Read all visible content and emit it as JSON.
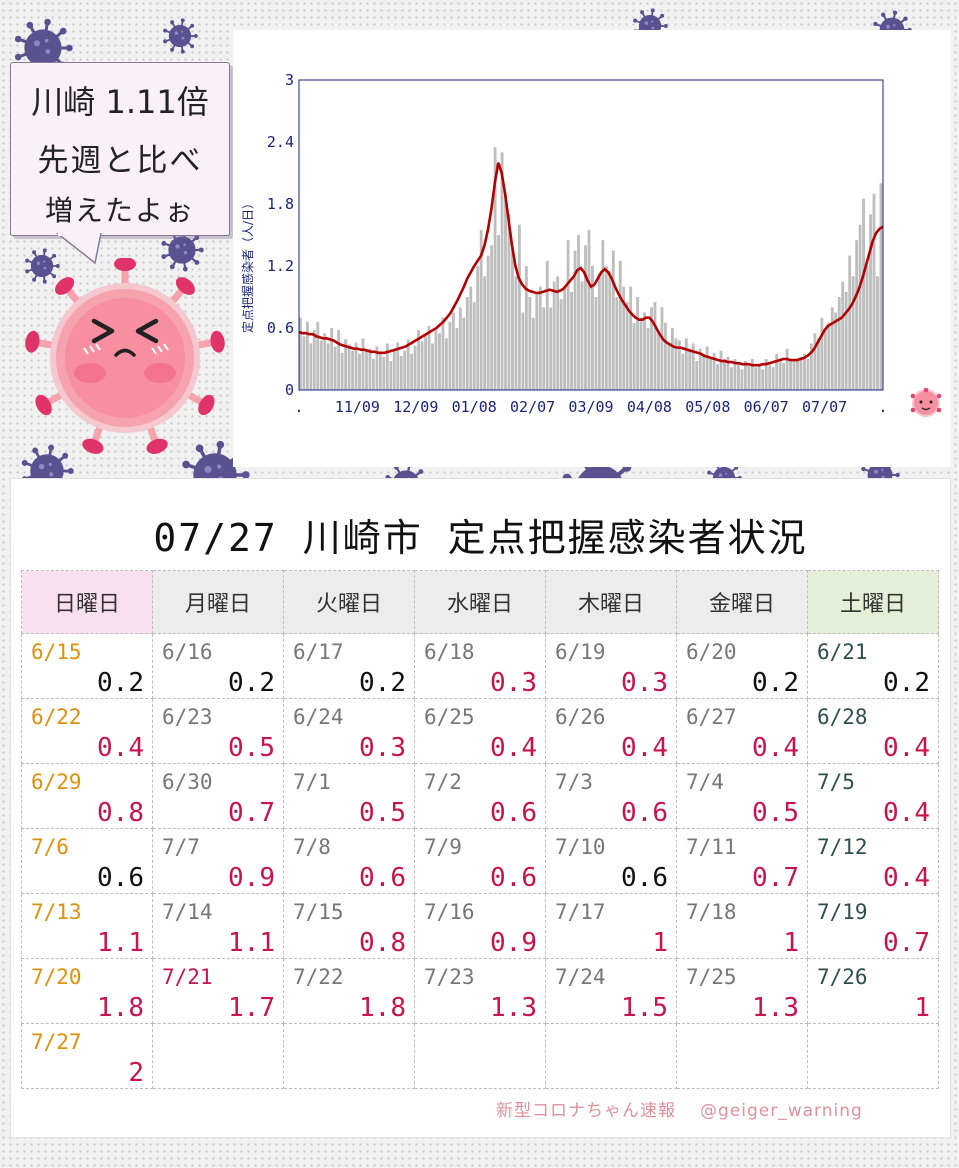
{
  "bubble": {
    "line1": "川崎 1.11倍",
    "line2": "先週と比べ",
    "line3": "増えたよぉ"
  },
  "chart_data": {
    "type": "bar",
    "title": "",
    "ylabel": "定点把握感染者（人/日）",
    "ylim": [
      0,
      3
    ],
    "yticks": [
      "0",
      "0.6",
      "1.2",
      "1.8",
      "2.4",
      "3"
    ],
    "xtick_labels": [
      ".",
      "11/09",
      "12/09",
      "01/08",
      "02/07",
      "03/09",
      "04/08",
      "05/08",
      "06/07",
      "07/07",
      "."
    ],
    "grid": false,
    "series": [
      {
        "type": "bar",
        "color": "#bebebe",
        "values": [
          0.7,
          0.52,
          0.66,
          0.45,
          0.58,
          0.66,
          0.48,
          0.55,
          0.45,
          0.6,
          0.42,
          0.58,
          0.36,
          0.49,
          0.44,
          0.38,
          0.46,
          0.35,
          0.5,
          0.38,
          0.4,
          0.3,
          0.42,
          0.36,
          0.32,
          0.45,
          0.28,
          0.4,
          0.46,
          0.33,
          0.38,
          0.49,
          0.35,
          0.43,
          0.58,
          0.47,
          0.52,
          0.62,
          0.45,
          0.6,
          0.55,
          0.7,
          0.5,
          0.66,
          0.75,
          0.6,
          0.8,
          0.7,
          0.9,
          1.0,
          0.85,
          1.2,
          1.55,
          1.1,
          1.3,
          1.4,
          2.35,
          1.5,
          2.3,
          1.9,
          1.7,
          1.4,
          1.1,
          1.6,
          0.75,
          1.2,
          0.9,
          0.7,
          0.95,
          1.0,
          0.8,
          1.25,
          0.8,
          1.05,
          1.1,
          0.88,
          1.0,
          1.45,
          0.95,
          1.35,
          1.5,
          1.05,
          1.4,
          1.55,
          1.2,
          0.9,
          1.1,
          1.45,
          1.2,
          1.15,
          1.35,
          0.9,
          1.25,
          1.0,
          0.85,
          1.0,
          0.65,
          0.9,
          0.7,
          0.75,
          0.6,
          0.8,
          0.85,
          0.55,
          0.8,
          0.65,
          0.45,
          0.6,
          0.5,
          0.48,
          0.35,
          0.5,
          0.4,
          0.45,
          0.28,
          0.4,
          0.35,
          0.42,
          0.3,
          0.36,
          0.25,
          0.38,
          0.3,
          0.32,
          0.22,
          0.3,
          0.26,
          0.2,
          0.28,
          0.24,
          0.3,
          0.22,
          0.25,
          0.2,
          0.3,
          0.24,
          0.22,
          0.35,
          0.28,
          0.26,
          0.4,
          0.3,
          0.28,
          0.3,
          0.32,
          0.35,
          0.3,
          0.45,
          0.55,
          0.5,
          0.7,
          0.6,
          0.65,
          0.8,
          0.75,
          0.9,
          1.05,
          0.95,
          1.3,
          1.1,
          1.45,
          1.6,
          1.85,
          1.2,
          1.7,
          1.9,
          1.1,
          2.0
        ]
      },
      {
        "type": "line",
        "color": "#b30000",
        "values": [
          0.56,
          0.55,
          0.55,
          0.54,
          0.54,
          0.52,
          0.51,
          0.5,
          0.5,
          0.49,
          0.48,
          0.46,
          0.44,
          0.43,
          0.42,
          0.41,
          0.4,
          0.4,
          0.39,
          0.39,
          0.38,
          0.37,
          0.37,
          0.36,
          0.36,
          0.36,
          0.37,
          0.38,
          0.39,
          0.4,
          0.41,
          0.42,
          0.44,
          0.46,
          0.48,
          0.5,
          0.52,
          0.54,
          0.56,
          0.58,
          0.6,
          0.63,
          0.66,
          0.7,
          0.74,
          0.8,
          0.86,
          0.93,
          1.0,
          1.08,
          1.14,
          1.2,
          1.25,
          1.3,
          1.4,
          1.55,
          1.75,
          2.0,
          2.2,
          2.1,
          1.9,
          1.65,
          1.4,
          1.2,
          1.08,
          1.02,
          0.98,
          0.96,
          0.95,
          0.94,
          0.94,
          0.95,
          0.96,
          0.97,
          0.96,
          0.95,
          0.96,
          0.98,
          1.02,
          1.06,
          1.1,
          1.16,
          1.18,
          1.14,
          1.06,
          1.0,
          1.02,
          1.08,
          1.14,
          1.17,
          1.14,
          1.08,
          1.0,
          0.93,
          0.87,
          0.82,
          0.77,
          0.73,
          0.7,
          0.68,
          0.68,
          0.7,
          0.7,
          0.66,
          0.6,
          0.54,
          0.49,
          0.46,
          0.44,
          0.42,
          0.41,
          0.41,
          0.4,
          0.39,
          0.38,
          0.37,
          0.36,
          0.35,
          0.33,
          0.32,
          0.31,
          0.3,
          0.29,
          0.28,
          0.28,
          0.27,
          0.27,
          0.26,
          0.26,
          0.25,
          0.25,
          0.25,
          0.24,
          0.24,
          0.24,
          0.25,
          0.25,
          0.26,
          0.27,
          0.28,
          0.29,
          0.3,
          0.3,
          0.29,
          0.29,
          0.29,
          0.3,
          0.31,
          0.33,
          0.36,
          0.4,
          0.46,
          0.52,
          0.58,
          0.62,
          0.64,
          0.66,
          0.68,
          0.7,
          0.74,
          0.78,
          0.83,
          0.9,
          0.98,
          1.08,
          1.2,
          1.32,
          1.44,
          1.52,
          1.56,
          1.58
        ]
      }
    ]
  },
  "table": {
    "title": "07/27 川崎市 定点把握感染者状況",
    "weekdays": [
      "日曜日",
      "月曜日",
      "火曜日",
      "水曜日",
      "木曜日",
      "金曜日",
      "土曜日"
    ],
    "weeks": [
      [
        {
          "d": "6/15",
          "v": "0.2"
        },
        {
          "d": "6/16",
          "v": "0.2"
        },
        {
          "d": "6/17",
          "v": "0.2"
        },
        {
          "d": "6/18",
          "v": "0.3",
          "up": true
        },
        {
          "d": "6/19",
          "v": "0.3",
          "up": true
        },
        {
          "d": "6/20",
          "v": "0.2"
        },
        {
          "d": "6/21",
          "v": "0.2"
        }
      ],
      [
        {
          "d": "6/22",
          "v": "0.4",
          "up": true
        },
        {
          "d": "6/23",
          "v": "0.5",
          "up": true
        },
        {
          "d": "6/24",
          "v": "0.3",
          "up": true
        },
        {
          "d": "6/25",
          "v": "0.4",
          "up": true
        },
        {
          "d": "6/26",
          "v": "0.4",
          "up": true
        },
        {
          "d": "6/27",
          "v": "0.4",
          "up": true
        },
        {
          "d": "6/28",
          "v": "0.4",
          "up": true
        }
      ],
      [
        {
          "d": "6/29",
          "v": "0.8",
          "up": true
        },
        {
          "d": "6/30",
          "v": "0.7",
          "up": true
        },
        {
          "d": "7/1",
          "v": "0.5",
          "up": true
        },
        {
          "d": "7/2",
          "v": "0.6",
          "up": true
        },
        {
          "d": "7/3",
          "v": "0.6",
          "up": true
        },
        {
          "d": "7/4",
          "v": "0.5",
          "up": true
        },
        {
          "d": "7/5",
          "v": "0.4",
          "up": true
        }
      ],
      [
        {
          "d": "7/6",
          "v": "0.6"
        },
        {
          "d": "7/7",
          "v": "0.9",
          "up": true
        },
        {
          "d": "7/8",
          "v": "0.6",
          "up": true
        },
        {
          "d": "7/9",
          "v": "0.6",
          "up": true
        },
        {
          "d": "7/10",
          "v": "0.6"
        },
        {
          "d": "7/11",
          "v": "0.7",
          "up": true
        },
        {
          "d": "7/12",
          "v": "0.4",
          "up": true
        }
      ],
      [
        {
          "d": "7/13",
          "v": "1.1",
          "up": true
        },
        {
          "d": "7/14",
          "v": "1.1",
          "up": true
        },
        {
          "d": "7/15",
          "v": "0.8",
          "up": true
        },
        {
          "d": "7/16",
          "v": "0.9",
          "up": true
        },
        {
          "d": "7/17",
          "v": "1",
          "up": true
        },
        {
          "d": "7/18",
          "v": "1",
          "up": true
        },
        {
          "d": "7/19",
          "v": "0.7",
          "up": true
        }
      ],
      [
        {
          "d": "7/20",
          "v": "1.8",
          "up": true
        },
        {
          "d": "7/21",
          "v": "1.7",
          "up": true,
          "holiday": true
        },
        {
          "d": "7/22",
          "v": "1.8",
          "up": true
        },
        {
          "d": "7/23",
          "v": "1.3",
          "up": true
        },
        {
          "d": "7/24",
          "v": "1.5",
          "up": true
        },
        {
          "d": "7/25",
          "v": "1.3",
          "up": true
        },
        {
          "d": "7/26",
          "v": "1",
          "up": true
        }
      ],
      [
        {
          "d": "7/27",
          "v": "2",
          "up": true
        },
        null,
        null,
        null,
        null,
        null,
        null
      ]
    ]
  },
  "footer": {
    "source": "新型コロナちゃん速報",
    "handle": "@geiger_warning"
  },
  "colors": {
    "bars": "#bebebe",
    "line": "#b30000",
    "axis_text": "#1a237e",
    "increase": "#c8134e",
    "sunday_date": "#e0900a",
    "holiday_date": "#c8134e",
    "saturday_date": "#2f4f4f",
    "weekday_date": "#777777",
    "virus_purple": "#5a5290",
    "mascot_pink": "#f78fa0"
  },
  "icons": [
    "coronavirus-icon",
    "crying-virus-mascot",
    "mini-virus-mascot"
  ]
}
